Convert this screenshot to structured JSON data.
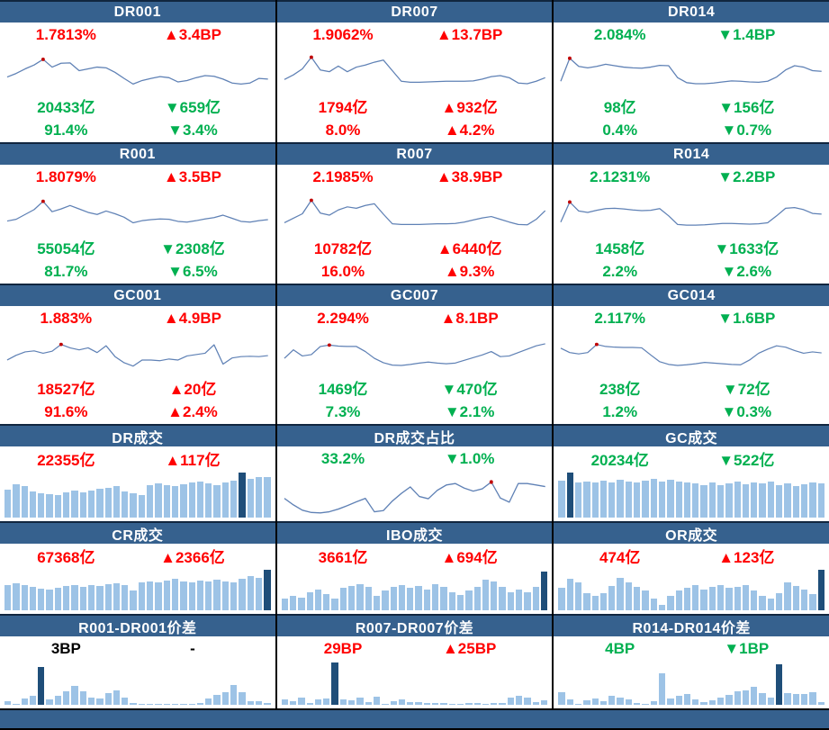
{
  "colors": {
    "header_bg": "#36618E",
    "footer_bg": "#36618E",
    "up_red": "#FF0000",
    "down_green": "#00B050",
    "neutral_black": "#000000",
    "line": "#5F81B5",
    "peak_dot": "#C00000",
    "bar_light": "#9DC3E6",
    "bar_dark": "#1F4E79",
    "divider": "#000000"
  },
  "layout_note": "money-market monitoring dashboard, 3 columns x 6 rows of mini-charts plus footer bar",
  "chart_data": [
    {
      "id": "dr001",
      "title": "DR001",
      "type": "line",
      "stats_top": [
        {
          "name": "rate",
          "left": "1.7813%",
          "right": "▲3.4BP",
          "left_color": "up",
          "right_color": "up"
        }
      ],
      "stats_bottom": [
        {
          "name": "volume",
          "left": "20433亿",
          "right": "▼659亿",
          "left_color": "down",
          "right_color": "down"
        },
        {
          "name": "share",
          "left": "91.4%",
          "right": "▼3.4%",
          "left_color": "down",
          "right_color": "down"
        }
      ],
      "series": [
        32,
        42,
        55,
        66,
        82,
        60,
        71,
        72,
        50,
        55,
        60,
        58,
        45,
        28,
        12,
        22,
        28,
        33,
        30,
        18,
        22,
        30,
        36,
        34,
        26,
        15,
        12,
        15,
        28,
        26
      ],
      "dot_index": 4
    },
    {
      "id": "dr007",
      "title": "DR007",
      "type": "line",
      "stats_top": [
        {
          "name": "rate",
          "left": "1.9062%",
          "right": "▲13.7BP",
          "left_color": "up",
          "right_color": "up"
        }
      ],
      "stats_bottom": [
        {
          "name": "volume",
          "left": "1794亿",
          "right": "▲932亿",
          "left_color": "up",
          "right_color": "up"
        },
        {
          "name": "share",
          "left": "8.0%",
          "right": "▲4.2%",
          "left_color": "up",
          "right_color": "up"
        }
      ],
      "series": [
        25,
        38,
        55,
        88,
        52,
        47,
        63,
        47,
        60,
        66,
        74,
        80,
        50,
        20,
        17,
        17,
        18,
        19,
        20,
        20,
        20,
        21,
        26,
        33,
        36,
        30,
        15,
        13,
        20,
        30
      ],
      "dot_index": 3
    },
    {
      "id": "dr014",
      "title": "DR014",
      "type": "line",
      "stats_top": [
        {
          "name": "rate",
          "left": "2.084%",
          "right": "▼1.4BP",
          "left_color": "down",
          "right_color": "down"
        }
      ],
      "stats_bottom": [
        {
          "name": "volume",
          "left": "98亿",
          "right": "▼156亿",
          "left_color": "down",
          "right_color": "down"
        },
        {
          "name": "share",
          "left": "0.4%",
          "right": "▼0.7%",
          "left_color": "down",
          "right_color": "down"
        }
      ],
      "series": [
        20,
        85,
        62,
        58,
        62,
        68,
        64,
        60,
        58,
        57,
        60,
        65,
        64,
        30,
        16,
        13,
        13,
        15,
        18,
        21,
        20,
        18,
        17,
        20,
        32,
        52,
        64,
        60,
        50,
        48
      ],
      "dot_index": 1
    },
    {
      "id": "r001",
      "title": "R001",
      "type": "line",
      "stats_top": [
        {
          "name": "rate",
          "left": "1.8079%",
          "right": "▲3.5BP",
          "left_color": "up",
          "right_color": "up"
        }
      ],
      "stats_bottom": [
        {
          "name": "volume",
          "left": "55054亿",
          "right": "▼2308亿",
          "left_color": "down",
          "right_color": "down"
        },
        {
          "name": "share",
          "left": "81.7%",
          "right": "▼6.5%",
          "left_color": "down",
          "right_color": "down"
        }
      ],
      "series": [
        25,
        30,
        44,
        58,
        82,
        52,
        60,
        70,
        60,
        50,
        44,
        54,
        46,
        36,
        20,
        26,
        29,
        31,
        30,
        24,
        22,
        26,
        31,
        35,
        42,
        33,
        24,
        22,
        26,
        29
      ],
      "dot_index": 4
    },
    {
      "id": "r007",
      "title": "R007",
      "type": "line",
      "stats_top": [
        {
          "name": "rate",
          "left": "2.1985%",
          "right": "▲38.9BP",
          "left_color": "up",
          "right_color": "up"
        }
      ],
      "stats_bottom": [
        {
          "name": "volume",
          "left": "10782亿",
          "right": "▲6440亿",
          "left_color": "up",
          "right_color": "up"
        },
        {
          "name": "share",
          "left": "16.0%",
          "right": "▲9.3%",
          "left_color": "up",
          "right_color": "up"
        }
      ],
      "series": [
        20,
        33,
        46,
        85,
        48,
        42,
        57,
        66,
        62,
        70,
        75,
        45,
        17,
        15,
        15,
        15,
        16,
        17,
        17,
        18,
        22,
        28,
        34,
        38,
        30,
        22,
        15,
        14,
        30,
        55
      ],
      "dot_index": 3
    },
    {
      "id": "r014",
      "title": "R014",
      "type": "line",
      "stats_top": [
        {
          "name": "rate",
          "left": "2.1231%",
          "right": "▼2.2BP",
          "left_color": "down",
          "right_color": "down"
        }
      ],
      "stats_bottom": [
        {
          "name": "volume",
          "left": "1458亿",
          "right": "▼1633亿",
          "left_color": "down",
          "right_color": "down"
        },
        {
          "name": "share",
          "left": "2.2%",
          "right": "▼2.6%",
          "left_color": "down",
          "right_color": "down"
        }
      ],
      "series": [
        22,
        80,
        54,
        50,
        56,
        61,
        62,
        60,
        57,
        55,
        56,
        61,
        40,
        15,
        13,
        13,
        14,
        16,
        18,
        18,
        17,
        16,
        17,
        20,
        40,
        62,
        64,
        58,
        47,
        45
      ],
      "dot_index": 1
    },
    {
      "id": "gc001",
      "title": "GC001",
      "type": "line",
      "stats_top": [
        {
          "name": "rate",
          "left": "1.883%",
          "right": "▲4.9BP",
          "left_color": "up",
          "right_color": "up"
        }
      ],
      "stats_bottom": [
        {
          "name": "volume",
          "left": "18527亿",
          "right": "▲20亿",
          "left_color": "up",
          "right_color": "up"
        },
        {
          "name": "share",
          "left": "91.6%",
          "right": "▲2.4%",
          "left_color": "up",
          "right_color": "up"
        }
      ],
      "series": [
        30,
        44,
        54,
        57,
        50,
        56,
        76,
        66,
        60,
        66,
        52,
        72,
        40,
        22,
        12,
        30,
        30,
        28,
        33,
        30,
        42,
        46,
        50,
        75,
        18,
        36,
        40,
        41,
        40,
        43
      ],
      "dot_index": 6
    },
    {
      "id": "gc007",
      "title": "GC007",
      "type": "line",
      "stats_top": [
        {
          "name": "rate",
          "left": "2.294%",
          "right": "▲8.1BP",
          "left_color": "up",
          "right_color": "up"
        }
      ],
      "stats_bottom": [
        {
          "name": "volume",
          "left": "1469亿",
          "right": "▼470亿",
          "left_color": "down",
          "right_color": "down"
        },
        {
          "name": "share",
          "left": "7.3%",
          "right": "▼2.1%",
          "left_color": "down",
          "right_color": "down"
        }
      ],
      "series": [
        35,
        60,
        42,
        46,
        70,
        74,
        71,
        70,
        70,
        55,
        35,
        22,
        15,
        14,
        17,
        21,
        24,
        21,
        19,
        21,
        29,
        37,
        45,
        55,
        40,
        42,
        52,
        62,
        72,
        78
      ],
      "dot_index": 5
    },
    {
      "id": "gc014",
      "title": "GC014",
      "type": "line",
      "stats_top": [
        {
          "name": "rate",
          "left": "2.117%",
          "right": "▼1.6BP",
          "left_color": "down",
          "right_color": "down"
        }
      ],
      "stats_bottom": [
        {
          "name": "volume",
          "left": "238亿",
          "right": "▼72亿",
          "left_color": "down",
          "right_color": "down"
        },
        {
          "name": "share",
          "left": "1.2%",
          "right": "▼0.3%",
          "left_color": "down",
          "right_color": "down"
        }
      ],
      "series": [
        65,
        52,
        48,
        52,
        76,
        70,
        68,
        67,
        67,
        66,
        45,
        25,
        17,
        14,
        16,
        19,
        23,
        21,
        19,
        17,
        16,
        30,
        50,
        62,
        72,
        68,
        58,
        50,
        54,
        51
      ],
      "dot_index": 4
    },
    {
      "id": "dr-volume",
      "title": "DR成交",
      "type": "bar",
      "stats_top": [
        {
          "name": "volume",
          "left": "22355亿",
          "right": "▲117亿",
          "left_color": "up",
          "right_color": "up"
        }
      ],
      "stats_bottom": [],
      "bars": [
        62,
        75,
        70,
        58,
        55,
        52,
        50,
        56,
        60,
        56,
        60,
        64,
        66,
        70,
        58,
        54,
        50,
        72,
        76,
        72,
        70,
        74,
        78,
        80,
        76,
        72,
        78,
        82,
        100,
        86,
        90,
        90
      ],
      "highlight_index": 28
    },
    {
      "id": "dr-share",
      "title": "DR成交占比",
      "type": "line",
      "stats_top": [
        {
          "name": "share",
          "left": "33.2%",
          "right": "▼1.0%",
          "left_color": "down",
          "right_color": "down"
        }
      ],
      "stats_bottom": [],
      "series": [
        45,
        28,
        14,
        8,
        7,
        10,
        17,
        26,
        36,
        45,
        10,
        13,
        38,
        58,
        75,
        50,
        44,
        66,
        80,
        84,
        72,
        64,
        70,
        88,
        46,
        35,
        84,
        84,
        80,
        76
      ],
      "dot_index": 23
    },
    {
      "id": "gc-volume",
      "title": "GC成交",
      "type": "bar",
      "stats_top": [
        {
          "name": "volume",
          "left": "20234亿",
          "right": "▼522亿",
          "left_color": "down",
          "right_color": "down"
        }
      ],
      "stats_bottom": [],
      "bars": [
        82,
        100,
        78,
        80,
        78,
        82,
        78,
        84,
        80,
        78,
        82,
        86,
        80,
        84,
        80,
        78,
        76,
        72,
        78,
        72,
        76,
        80,
        74,
        78,
        76,
        80,
        72,
        76,
        70,
        74,
        78,
        76
      ],
      "highlight_index": 1
    },
    {
      "id": "cr-volume",
      "title": "CR成交",
      "type": "bar",
      "stats_top": [
        {
          "name": "volume",
          "left": "67368亿",
          "right": "▲2366亿",
          "left_color": "up",
          "right_color": "up"
        }
      ],
      "stats_bottom": [],
      "bars": [
        62,
        66,
        62,
        58,
        54,
        52,
        56,
        60,
        62,
        58,
        62,
        60,
        64,
        66,
        62,
        48,
        68,
        72,
        70,
        74,
        78,
        72,
        70,
        74,
        72,
        76,
        72,
        68,
        78,
        84,
        80,
        100
      ],
      "highlight_index": 31
    },
    {
      "id": "ibo-volume",
      "title": "IBO成交",
      "type": "bar",
      "stats_top": [
        {
          "name": "volume",
          "left": "3661亿",
          "right": "▲694亿",
          "left_color": "up",
          "right_color": "up"
        }
      ],
      "stats_bottom": [],
      "bars": [
        30,
        35,
        32,
        45,
        52,
        40,
        30,
        55,
        60,
        65,
        58,
        35,
        50,
        58,
        62,
        55,
        60,
        52,
        65,
        58,
        45,
        38,
        48,
        58,
        75,
        72,
        58,
        45,
        52,
        45,
        58,
        95
      ],
      "highlight_index": 31
    },
    {
      "id": "or-volume",
      "title": "OR成交",
      "type": "bar",
      "stats_top": [
        {
          "name": "volume",
          "left": "474亿",
          "right": "▲123亿",
          "left_color": "up",
          "right_color": "up"
        }
      ],
      "stats_bottom": [],
      "bars": [
        55,
        78,
        70,
        42,
        35,
        42,
        60,
        80,
        68,
        58,
        50,
        30,
        14,
        36,
        48,
        55,
        62,
        52,
        58,
        62,
        55,
        58,
        62,
        48,
        36,
        30,
        42,
        68,
        60,
        52,
        40,
        100
      ],
      "highlight_index": 31
    },
    {
      "id": "r001-dr001-spread",
      "title": "R001-DR001价差",
      "type": "bar",
      "stats_top": [
        {
          "name": "spread",
          "left": "3BP",
          "right": "-",
          "left_color": "flat",
          "right_color": "flat"
        }
      ],
      "stats_bottom": [],
      "bars": [
        8,
        3,
        14,
        22,
        90,
        12,
        22,
        32,
        45,
        32,
        16,
        14,
        28,
        34,
        18,
        4,
        3,
        3,
        3,
        3,
        3,
        3,
        3,
        4,
        14,
        24,
        30,
        46,
        30,
        8,
        8,
        4
      ],
      "highlight_index": 4
    },
    {
      "id": "r007-dr007-spread",
      "title": "R007-DR007价差",
      "type": "bar",
      "stats_top": [
        {
          "name": "spread",
          "left": "29BP",
          "right": "▲25BP",
          "left_color": "up",
          "right_color": "up"
        }
      ],
      "stats_bottom": [],
      "bars": [
        12,
        8,
        18,
        4,
        12,
        14,
        100,
        12,
        10,
        16,
        6,
        20,
        3,
        8,
        12,
        6,
        6,
        5,
        4,
        4,
        3,
        3,
        4,
        4,
        3,
        4,
        5,
        16,
        22,
        18,
        6,
        10
      ],
      "highlight_index": 6
    },
    {
      "id": "r014-dr014-spread",
      "title": "R014-DR014价差",
      "type": "bar",
      "stats_top": [
        {
          "name": "spread",
          "left": "4BP",
          "right": "▼1BP",
          "left_color": "down",
          "right_color": "down"
        }
      ],
      "stats_bottom": [],
      "bars": [
        30,
        12,
        2,
        10,
        14,
        8,
        22,
        18,
        12,
        4,
        2,
        8,
        75,
        14,
        22,
        25,
        12,
        6,
        10,
        18,
        24,
        32,
        35,
        42,
        28,
        16,
        95,
        28,
        26,
        26,
        30,
        6
      ],
      "highlight_index": 26
    }
  ]
}
